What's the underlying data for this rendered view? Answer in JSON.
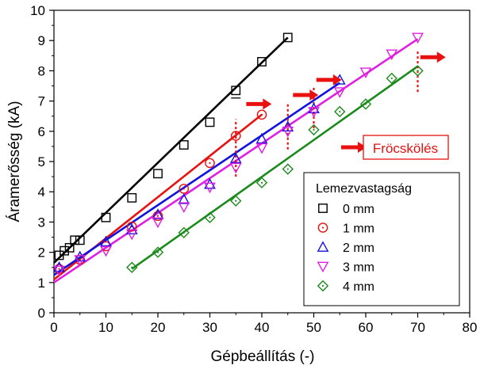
{
  "chart_data": {
    "type": "scatter",
    "xlabel": "Gépbeállítás (-)",
    "ylabel": "Áramerősség (kA)",
    "xlim": [
      0,
      80
    ],
    "ylim": [
      0,
      10
    ],
    "xticks": [
      0,
      10,
      20,
      30,
      40,
      50,
      60,
      70,
      80
    ],
    "yticks": [
      0,
      1,
      2,
      3,
      4,
      5,
      6,
      7,
      8,
      9,
      10
    ],
    "grid": false,
    "legend": {
      "title": "Lemezvastagság",
      "placement": "bottom-right"
    },
    "annotation": {
      "label": "Fröcskölés",
      "color": "#e8110f"
    },
    "series": [
      {
        "name": "0 mm",
        "marker": "square",
        "color": "#000000",
        "x": [
          1,
          2,
          3,
          4,
          5,
          10,
          15,
          20,
          25,
          30,
          35,
          40,
          45
        ],
        "y": [
          1.9,
          2.05,
          2.15,
          2.4,
          2.4,
          3.15,
          3.8,
          4.6,
          5.55,
          6.3,
          7.35,
          8.3,
          9.1
        ],
        "fit": [
          [
            0,
            1.65
          ],
          [
            45,
            9.1
          ]
        ]
      },
      {
        "name": "1 mm",
        "marker": "circle",
        "color": "#e8110f",
        "x": [
          1,
          5,
          10,
          15,
          20,
          25,
          30,
          35,
          40
        ],
        "y": [
          1.45,
          1.75,
          2.2,
          2.85,
          3.2,
          4.1,
          4.95,
          5.85,
          6.55
        ],
        "fit": [
          [
            0,
            1.1
          ],
          [
            40,
            6.55
          ]
        ]
      },
      {
        "name": "2 mm",
        "marker": "triangle-up",
        "color": "#1111e0",
        "x": [
          1,
          5,
          10,
          15,
          20,
          25,
          30,
          35,
          40,
          45,
          50,
          55
        ],
        "y": [
          1.5,
          1.85,
          2.35,
          2.75,
          3.25,
          3.75,
          4.25,
          5.1,
          5.75,
          6.15,
          6.75,
          7.7
        ],
        "fit": [
          [
            0,
            1.25
          ],
          [
            55,
            7.6
          ]
        ]
      },
      {
        "name": "3 mm",
        "marker": "triangle-down",
        "color": "#e020e0",
        "x": [
          1,
          5,
          10,
          15,
          20,
          25,
          30,
          35,
          40,
          45,
          50,
          55,
          60,
          65,
          70
        ],
        "y": [
          1.4,
          1.75,
          2.05,
          2.6,
          3.0,
          3.5,
          4.15,
          4.8,
          5.45,
          6.0,
          6.65,
          7.3,
          7.95,
          8.55,
          9.1
        ],
        "fit": [
          [
            0,
            1.0
          ],
          [
            70,
            9.05
          ]
        ]
      },
      {
        "name": "4 mm",
        "marker": "diamond",
        "color": "#1a8a1a",
        "x": [
          15,
          20,
          25,
          30,
          35,
          40,
          45,
          50,
          55,
          60,
          65,
          70
        ],
        "y": [
          1.5,
          2.0,
          2.65,
          3.15,
          3.7,
          4.3,
          4.75,
          6.05,
          6.65,
          6.9,
          7.75,
          8.0
        ],
        "fit": [
          [
            15,
            1.45
          ],
          [
            70,
            8.15
          ]
        ]
      }
    ],
    "spatter_markers": [
      {
        "series": "0 mm",
        "x": 35,
        "y": 7.1
      },
      {
        "series": "1 mm",
        "x": 35,
        "y_from": 4.5,
        "y_to": 6.4
      },
      {
        "series": "2 mm",
        "x": 45,
        "y_from": 5.4,
        "y_to": 6.9
      },
      {
        "series": "3 mm",
        "x": 50,
        "y_from": 6.1,
        "y_to": 7.5
      },
      {
        "series": "4 mm",
        "x": 70,
        "y_from": 7.3,
        "y_to": 8.7
      }
    ],
    "arrows": [
      {
        "x": 37,
        "y": 6.9
      },
      {
        "x": 46,
        "y": 7.2
      },
      {
        "x": 50.5,
        "y": 7.7
      },
      {
        "x": 70.5,
        "y": 8.45
      }
    ]
  }
}
